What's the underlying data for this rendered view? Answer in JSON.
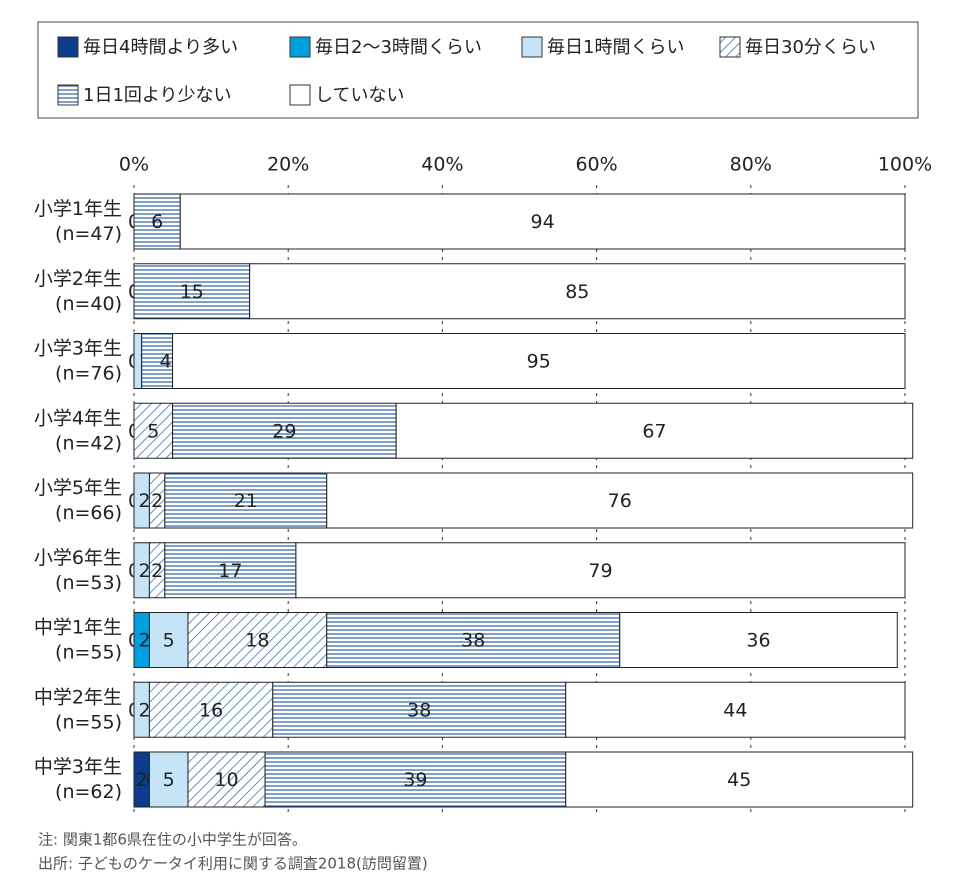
{
  "chart_data": {
    "type": "stacked_barh",
    "categories": [
      "小学1年生",
      "小学2年生",
      "小学3年生",
      "小学4年生",
      "小学5年生",
      "小学6年生",
      "中学1年生",
      "中学2年生",
      "中学3年生"
    ],
    "category_sublabels": [
      "(n=47)",
      "(n=40)",
      "(n=76)",
      "(n=42)",
      "(n=66)",
      "(n=53)",
      "(n=55)",
      "(n=55)",
      "(n=62)"
    ],
    "series": [
      {
        "name": "毎日4時間より多い",
        "color": "#0d3c8c",
        "pattern": "solid",
        "values": [
          null,
          null,
          null,
          null,
          null,
          null,
          0,
          null,
          2
        ]
      },
      {
        "name": "毎日2～3時間くらい",
        "color": "#00a0e0",
        "pattern": "solid",
        "values": [
          null,
          null,
          0,
          null,
          0,
          0,
          2,
          0,
          0
        ]
      },
      {
        "name": "毎日1時間くらい",
        "color": "#c5e4f7",
        "pattern": "solid",
        "values": [
          0,
          0,
          1,
          0,
          2,
          2,
          5,
          2,
          5
        ]
      },
      {
        "name": "毎日30分くらい",
        "color": "#2b5fa8",
        "pattern": "diagonal",
        "values": [
          null,
          null,
          0,
          5,
          2,
          2,
          18,
          16,
          10
        ]
      },
      {
        "name": "1日1回より少ない",
        "color": "#2b5fa8",
        "pattern": "horizontal",
        "values": [
          6,
          15,
          4,
          29,
          21,
          17,
          38,
          38,
          39
        ]
      },
      {
        "name": "していない",
        "color": "#ffffff",
        "pattern": "solid",
        "values": [
          94,
          85,
          95,
          67,
          76,
          79,
          36,
          44,
          45
        ]
      }
    ],
    "xlim": [
      0,
      100
    ],
    "xticks": [
      {
        "value": 0,
        "label": "0%"
      },
      {
        "value": 20,
        "label": "20%"
      },
      {
        "value": 40,
        "label": "40%"
      },
      {
        "value": 60,
        "label": "60%"
      },
      {
        "value": 80,
        "label": "80%"
      },
      {
        "value": 100,
        "label": "100%"
      }
    ],
    "grid": true,
    "note": "注: 関東1都6県在住の小中学生が回答。",
    "source": "出所: 子どものケータイ利用に関する調査2018(訪問留置)"
  }
}
